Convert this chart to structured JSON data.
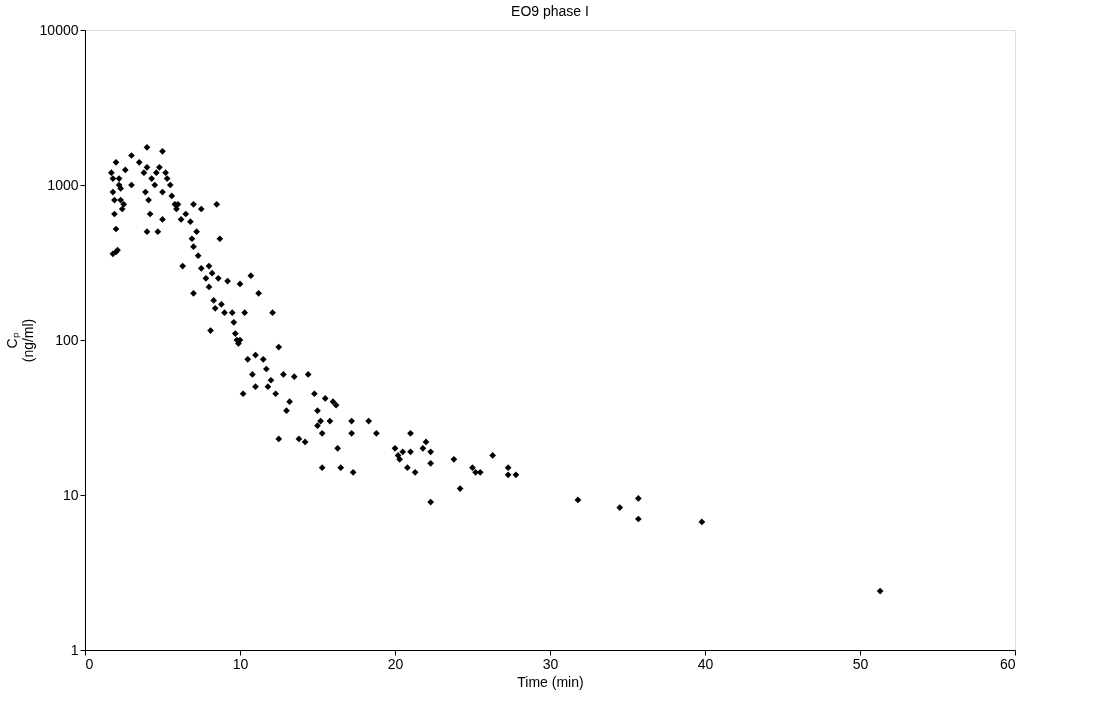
{
  "chart_data": {
    "type": "scatter",
    "title": "EO9 phase I",
    "xlabel": "Time (min)",
    "ylabel": "Cₚ (ng/ml)",
    "log": "y",
    "grid": false,
    "marker": "diamond",
    "xlim": [
      0,
      60
    ],
    "xticks": [
      0,
      10,
      20,
      30,
      40,
      50,
      60
    ],
    "ylim": [
      1,
      10000
    ],
    "yticks": [
      1,
      10,
      100,
      1000,
      10000
    ],
    "series": [
      {
        "color": "#000000",
        "x": [
          1.7,
          1.8,
          1.8,
          1.9,
          1.9,
          2.0,
          2.0,
          1.8,
          2.1,
          2.0,
          2.2,
          2.3,
          2.3,
          2.4,
          2.5,
          2.6,
          2.2,
          3.0,
          3.0,
          3.5,
          3.8,
          3.9,
          4.0,
          4.0,
          4.1,
          4.2,
          4.0,
          4.3,
          4.5,
          4.6,
          4.7,
          4.8,
          5.0,
          5.0,
          5.0,
          5.2,
          5.3,
          5.5,
          5.6,
          5.8,
          5.9,
          6.0,
          6.2,
          6.3,
          6.5,
          6.8,
          6.9,
          7.0,
          7.0,
          7.2,
          7.3,
          7.0,
          7.5,
          7.5,
          7.8,
          8.0,
          8.0,
          8.2,
          8.3,
          8.4,
          8.5,
          8.7,
          8.1,
          8.6,
          8.8,
          9.0,
          9.2,
          9.5,
          9.6,
          9.7,
          9.8,
          9.9,
          10.0,
          10.0,
          10.2,
          10.3,
          10.5,
          10.7,
          10.8,
          11.0,
          11.2,
          11.0,
          11.5,
          11.7,
          11.8,
          12.0,
          12.1,
          12.3,
          12.5,
          12.5,
          12.8,
          13.0,
          13.2,
          13.5,
          13.8,
          14.2,
          14.4,
          14.8,
          15.0,
          15.0,
          15.2,
          15.3,
          15.5,
          15.3,
          15.8,
          16.0,
          16.2,
          16.3,
          16.5,
          17.2,
          17.2,
          17.3,
          18.3,
          18.8,
          20.0,
          20.2,
          20.3,
          20.5,
          20.8,
          21.0,
          21.0,
          21.3,
          21.8,
          22.0,
          22.3,
          22.3,
          22.3,
          23.8,
          24.2,
          25.0,
          25.2,
          25.5,
          26.3,
          27.3,
          27.3,
          27.8,
          31.8,
          34.5,
          35.7,
          35.7,
          39.8,
          51.3
        ],
        "values": [
          1200,
          1100,
          900,
          800,
          650,
          520,
          370,
          360,
          380,
          1400,
          1100,
          950,
          800,
          700,
          750,
          1250,
          1000,
          1550,
          1000,
          1400,
          1200,
          900,
          1750,
          1300,
          800,
          650,
          500,
          1100,
          1000,
          1200,
          500,
          1300,
          1650,
          900,
          600,
          1200,
          1100,
          1000,
          850,
          750,
          700,
          750,
          600,
          300,
          650,
          580,
          450,
          750,
          400,
          500,
          350,
          200,
          700,
          290,
          250,
          300,
          220,
          270,
          180,
          160,
          750,
          450,
          115,
          250,
          170,
          150,
          240,
          150,
          130,
          110,
          100,
          95,
          230,
          100,
          45,
          150,
          75,
          260,
          60,
          80,
          200,
          50,
          75,
          65,
          50,
          55,
          150,
          45,
          90,
          23,
          60,
          35,
          40,
          58,
          23,
          22,
          60,
          45,
          35,
          28,
          30,
          25,
          42,
          15,
          30,
          40,
          38,
          20,
          15,
          30,
          25,
          14,
          30,
          25,
          20,
          18,
          17,
          19,
          15,
          25,
          19,
          14,
          20,
          22,
          19,
          16,
          9,
          17,
          11,
          15,
          14,
          14,
          18,
          15,
          13.5,
          13.5,
          9.3,
          8.3,
          9.5,
          7,
          6.7,
          2.4
        ]
      }
    ]
  }
}
